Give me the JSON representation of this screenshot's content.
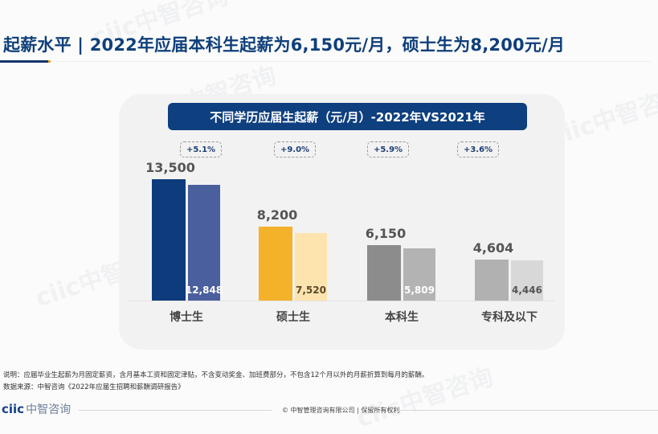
{
  "header": {
    "title": "起薪水平 | 2022年应届本科生起薪为6,150元/月，硕士生为8,200元/月"
  },
  "watermark": "ciic中智咨询",
  "chart_data": {
    "type": "bar",
    "title": "不同学历应届生起薪（元/月）-2022年VS2021年",
    "xlabel": "",
    "ylabel": "",
    "ylim": [
      0,
      14000
    ],
    "grid": false,
    "legend": "none",
    "categories": [
      "博士生",
      "硕士生",
      "本科生",
      "专科及以下"
    ],
    "series": [
      {
        "name": "2022年",
        "values": [
          13500,
          8200,
          6150,
          4604
        ]
      },
      {
        "name": "2021年",
        "values": [
          12848,
          7520,
          5809,
          4446
        ]
      }
    ],
    "value_labels_2022": [
      "13,500",
      "8,200",
      "6,150",
      "4,604"
    ],
    "value_labels_2021": [
      "12,848",
      "7,520",
      "5,809",
      "4,446"
    ],
    "growth": [
      "+5.1%",
      "+9.0%",
      "+5.9%",
      "+3.6%"
    ],
    "colors": {
      "2022": [
        "#0d3b7c",
        "#f4b22a",
        "#8c8c8c",
        "#b1b1b1"
      ],
      "2021": [
        "#4a5f9d",
        "#fde3ae",
        "#b3b3b3",
        "#d8d8d8"
      ],
      "inner_label": [
        "#ffffff",
        "#5a4a2a",
        "#ffffff",
        "#555555"
      ]
    }
  },
  "notes": {
    "explanation": "说明：应届毕业生起薪为月固定薪资，含月基本工资和固定津贴，不含变动奖金、加班费部分，不包含12个月以外的月薪折算到每月的薪酬。",
    "source": "数据来源：中智咨询《2022年应届生招聘和薪酬调研报告》"
  },
  "footer": {
    "logo_latin": "ciic",
    "logo_cn": "中智咨询",
    "copyright": "© 中智管理咨询有限公司 | 保留所有权利"
  }
}
